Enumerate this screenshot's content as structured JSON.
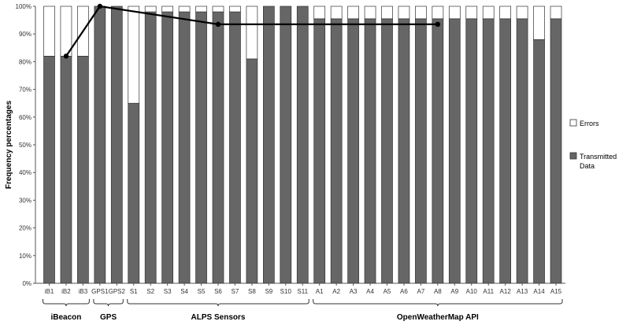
{
  "chart_data": {
    "type": "bar",
    "stacked": true,
    "title": "",
    "ylabel": "Frequency percentages",
    "ylim": [
      0,
      100
    ],
    "yticks": [
      "0%",
      "10%",
      "20%",
      "30%",
      "40%",
      "50%",
      "60%",
      "70%",
      "80%",
      "90%",
      "100%"
    ],
    "categories": [
      "iB1",
      "iB2",
      "iB3",
      "GPS1",
      "GPS2",
      "S1",
      "S2",
      "S3",
      "S4",
      "S5",
      "S6",
      "S7",
      "S8",
      "S9",
      "S10",
      "S11",
      "A1",
      "A2",
      "A3",
      "A4",
      "A5",
      "A6",
      "A7",
      "A8",
      "A9",
      "A10",
      "A11",
      "A12",
      "A13",
      "A14",
      "A15"
    ],
    "series": [
      {
        "name": "Transmitted Data",
        "color": "#666666",
        "values": [
          82,
          82,
          82,
          100,
          100,
          65,
          98,
          98,
          98,
          98,
          98,
          98,
          81,
          100,
          100,
          100,
          95.5,
          95.5,
          95.5,
          95.5,
          95.5,
          95.5,
          95.5,
          95.5,
          95.5,
          95.5,
          95.5,
          95.5,
          95.5,
          88,
          95.5
        ]
      },
      {
        "name": "Errors",
        "color": "#ffffff",
        "values": [
          18,
          18,
          18,
          0,
          0,
          35,
          2,
          2,
          2,
          2,
          2,
          2,
          19,
          0,
          0,
          0,
          4.5,
          4.5,
          4.5,
          4.5,
          4.5,
          4.5,
          4.5,
          4.5,
          4.5,
          4.5,
          4.5,
          4.5,
          4.5,
          12,
          4.5
        ]
      }
    ],
    "line": {
      "categories": [
        "iB2",
        "GPS1",
        "S6",
        "A8"
      ],
      "values": [
        82,
        100,
        93.5,
        93.5
      ]
    },
    "groups": [
      {
        "label": "iBeacon",
        "from": "iB1",
        "to": "iB3"
      },
      {
        "label": "GPS",
        "from": "GPS1",
        "to": "GPS2"
      },
      {
        "label": "ALPS Sensors",
        "from": "S1",
        "to": "S11"
      },
      {
        "label": "OpenWeatherMap API",
        "from": "A1",
        "to": "A15"
      }
    ],
    "legend": {
      "placement": "right",
      "entries": [
        {
          "label": "Errors",
          "color": "#ffffff"
        },
        {
          "label": "Transmitted Data",
          "color": "#666666"
        }
      ]
    }
  }
}
